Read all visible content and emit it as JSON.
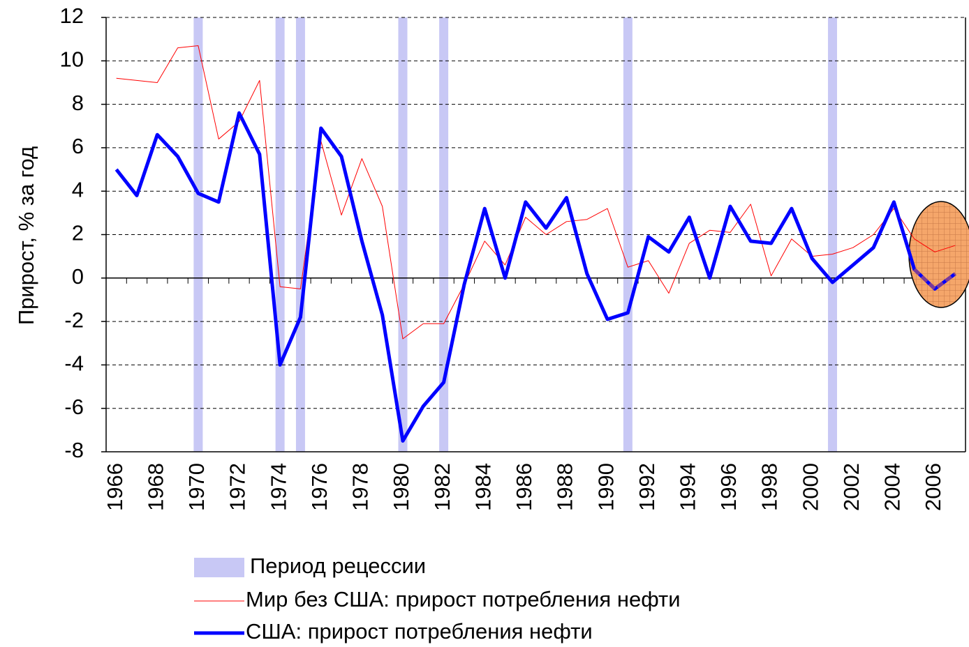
{
  "chart_data": {
    "type": "line",
    "ylabel": "Прирост, % за год",
    "x": [
      1966,
      1967,
      1968,
      1969,
      1970,
      1971,
      1972,
      1973,
      1974,
      1975,
      1976,
      1977,
      1978,
      1979,
      1980,
      1981,
      1982,
      1983,
      1984,
      1985,
      1986,
      1987,
      1988,
      1989,
      1990,
      1991,
      1992,
      1993,
      1994,
      1995,
      1996,
      1997,
      1998,
      1999,
      2000,
      2001,
      2002,
      2003,
      2004,
      2005,
      2006,
      2007
    ],
    "xlim": [
      1965.5,
      2007.5
    ],
    "xticks": [
      1966,
      1968,
      1970,
      1972,
      1974,
      1976,
      1978,
      1980,
      1982,
      1984,
      1986,
      1988,
      1990,
      1992,
      1994,
      1996,
      1998,
      2000,
      2002,
      2004,
      2006
    ],
    "ylim": [
      -8,
      12
    ],
    "yticks": [
      -8,
      -6,
      -4,
      -2,
      0,
      2,
      4,
      6,
      8,
      10,
      12
    ],
    "grid": true,
    "recessions": {
      "name": "Период рецессии",
      "color": "#c8c8f5",
      "x": [
        1970,
        1974,
        1975,
        1980,
        1982,
        1991,
        2001
      ]
    },
    "series": [
      {
        "name": "Мир без США: прирост потребления нефти",
        "color": "#ff0000",
        "values": [
          9.2,
          9.1,
          9.0,
          10.6,
          10.7,
          6.4,
          7.2,
          9.1,
          -0.4,
          -0.5,
          6.3,
          2.9,
          5.5,
          3.3,
          -2.8,
          -2.1,
          -2.1,
          -0.3,
          1.7,
          0.6,
          2.8,
          2.0,
          2.6,
          2.7,
          3.2,
          0.5,
          0.8,
          -0.7,
          1.6,
          2.2,
          2.1,
          3.4,
          0.1,
          1.8,
          1.0,
          1.1,
          1.4,
          2.0,
          3.2,
          1.8,
          1.2,
          1.5
        ]
      },
      {
        "name": "США: прирост потребления нефти",
        "color": "#0000ff",
        "values": [
          5.0,
          3.8,
          6.6,
          5.6,
          3.9,
          3.5,
          7.6,
          5.7,
          -4.0,
          -1.8,
          6.9,
          5.6,
          1.7,
          -1.7,
          -7.5,
          -5.9,
          -4.8,
          -0.3,
          3.2,
          0.0,
          3.5,
          2.3,
          3.7,
          0.2,
          -1.9,
          -1.6,
          1.9,
          1.2,
          2.8,
          0.0,
          3.3,
          1.7,
          1.6,
          3.2,
          0.9,
          -0.2,
          0.6,
          1.4,
          3.5,
          0.4,
          -0.5,
          0.2
        ]
      }
    ]
  }
}
